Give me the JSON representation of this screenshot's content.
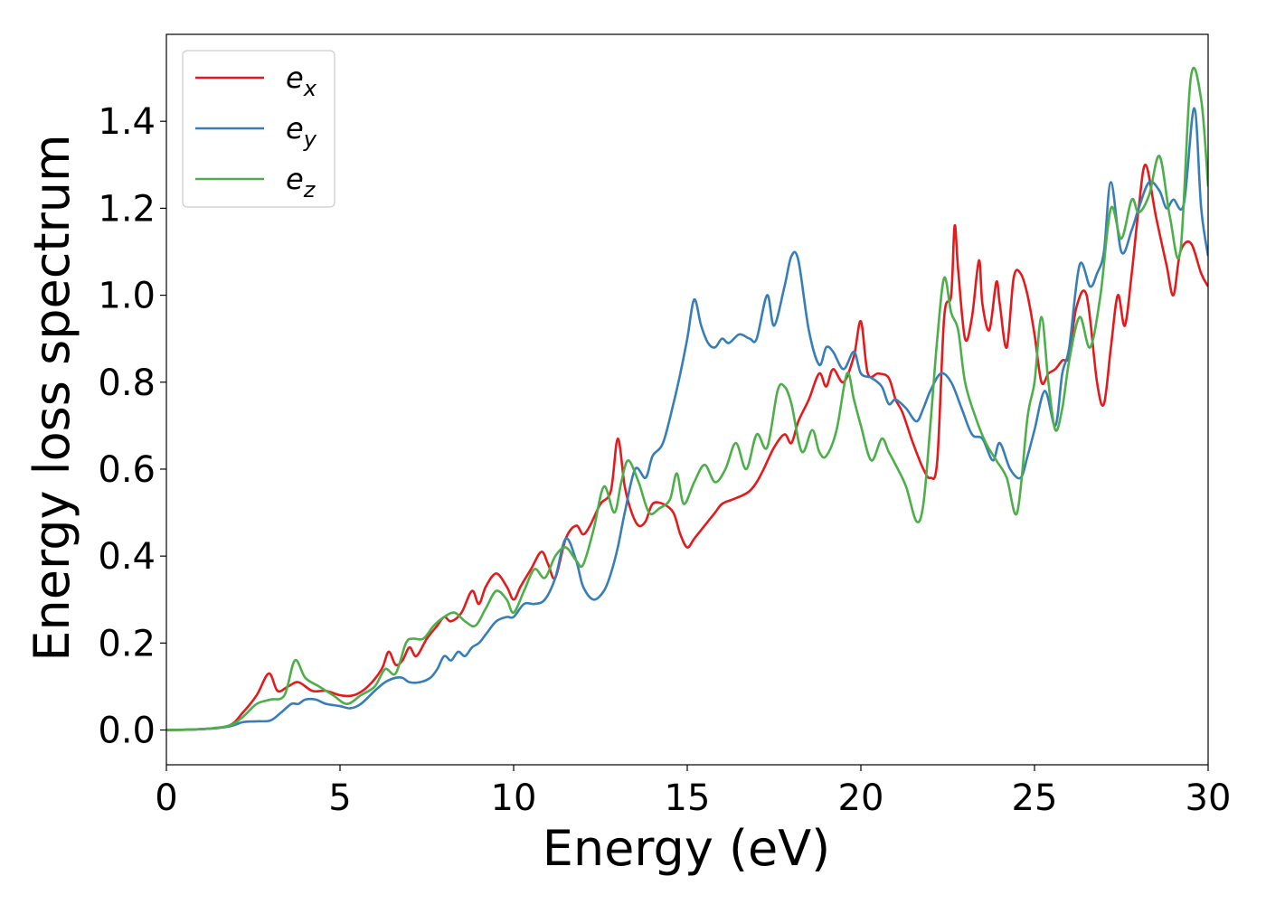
{
  "chart_data": {
    "type": "line",
    "title": "",
    "xlabel": "Energy (eV)",
    "ylabel": "Energy loss spectrum",
    "xlim": [
      0,
      30
    ],
    "ylim": [
      -0.08,
      1.6
    ],
    "xticks": [
      0,
      5,
      10,
      15,
      20,
      25,
      30
    ],
    "xtick_labels": [
      "0",
      "5",
      "10",
      "15",
      "20",
      "25",
      "30"
    ],
    "yticks": [
      0.0,
      0.2,
      0.4,
      0.6,
      0.8,
      1.0,
      1.2,
      1.4
    ],
    "ytick_labels": [
      "0.0",
      "0.2",
      "0.4",
      "0.6",
      "0.8",
      "1.0",
      "1.2",
      "1.4"
    ],
    "grid": false,
    "legend_position": "top-left",
    "series": [
      {
        "name": "e_x",
        "legend_base": "e",
        "legend_sub": "x",
        "color": "#e41a1c",
        "x": [
          0,
          1,
          1.8,
          2.2,
          2.6,
          2.95,
          3.2,
          3.5,
          3.8,
          4.2,
          4.6,
          5,
          5.4,
          5.8,
          6.2,
          6.4,
          6.6,
          6.8,
          7.0,
          7.2,
          7.5,
          7.8,
          8.0,
          8.2,
          8.5,
          8.8,
          9.0,
          9.2,
          9.5,
          9.8,
          10.0,
          10.2,
          10.5,
          10.8,
          11.0,
          11.2,
          11.5,
          11.8,
          12.0,
          12.2,
          12.5,
          12.8,
          13.0,
          13.2,
          13.4,
          13.6,
          13.8,
          14.0,
          14.3,
          14.6,
          14.8,
          15.0,
          15.2,
          15.5,
          15.8,
          16.0,
          16.3,
          16.6,
          16.8,
          17.0,
          17.2,
          17.5,
          17.8,
          18.0,
          18.2,
          18.5,
          18.8,
          19.0,
          19.2,
          19.5,
          19.8,
          20.0,
          20.2,
          20.5,
          20.8,
          21.0,
          21.2,
          21.5,
          21.8,
          22.0,
          22.2,
          22.4,
          22.6,
          22.7,
          22.8,
          23.0,
          23.2,
          23.4,
          23.5,
          23.7,
          23.9,
          24.0,
          24.2,
          24.4,
          24.6,
          24.8,
          25.0,
          25.2,
          25.4,
          25.6,
          25.8,
          26.0,
          26.2,
          26.5,
          26.8,
          27.0,
          27.2,
          27.4,
          27.6,
          27.8,
          28.0,
          28.2,
          28.5,
          28.8,
          29.0,
          29.2,
          29.5,
          29.8,
          30
        ],
        "y": [
          0,
          0.002,
          0.01,
          0.04,
          0.08,
          0.13,
          0.09,
          0.1,
          0.11,
          0.09,
          0.09,
          0.08,
          0.08,
          0.1,
          0.14,
          0.18,
          0.15,
          0.16,
          0.19,
          0.17,
          0.21,
          0.24,
          0.26,
          0.25,
          0.27,
          0.32,
          0.29,
          0.33,
          0.36,
          0.33,
          0.3,
          0.33,
          0.37,
          0.41,
          0.38,
          0.35,
          0.44,
          0.47,
          0.45,
          0.47,
          0.52,
          0.55,
          0.67,
          0.56,
          0.5,
          0.47,
          0.48,
          0.52,
          0.52,
          0.5,
          0.45,
          0.42,
          0.44,
          0.47,
          0.5,
          0.52,
          0.53,
          0.54,
          0.55,
          0.57,
          0.6,
          0.65,
          0.68,
          0.66,
          0.71,
          0.76,
          0.82,
          0.79,
          0.83,
          0.8,
          0.86,
          0.94,
          0.82,
          0.82,
          0.81,
          0.76,
          0.73,
          0.66,
          0.6,
          0.58,
          0.62,
          0.95,
          1.0,
          1.16,
          1.06,
          0.9,
          0.95,
          1.08,
          0.98,
          0.92,
          1.03,
          0.98,
          0.88,
          1.04,
          1.05,
          1.0,
          0.91,
          0.8,
          0.82,
          0.83,
          0.85,
          0.86,
          0.97,
          1.0,
          0.8,
          0.75,
          0.88,
          1.0,
          0.93,
          1.05,
          1.2,
          1.3,
          1.18,
          1.07,
          1.0,
          1.1,
          1.12,
          1.05,
          1.02
        ]
      },
      {
        "name": "e_y",
        "legend_base": "e",
        "legend_sub": "y",
        "color": "#377eb8",
        "x": [
          0,
          1,
          1.8,
          2.2,
          2.6,
          3.0,
          3.3,
          3.6,
          3.8,
          4.0,
          4.3,
          4.6,
          5.0,
          5.3,
          5.6,
          6.0,
          6.3,
          6.6,
          6.8,
          7.0,
          7.3,
          7.6,
          7.8,
          8.0,
          8.2,
          8.4,
          8.6,
          8.8,
          9.0,
          9.2,
          9.5,
          9.8,
          10.0,
          10.3,
          10.6,
          10.9,
          11.2,
          11.5,
          11.8,
          12.0,
          12.3,
          12.6,
          12.8,
          13.0,
          13.2,
          13.5,
          13.8,
          14.0,
          14.3,
          14.6,
          14.8,
          15.0,
          15.2,
          15.4,
          15.6,
          15.8,
          16.0,
          16.2,
          16.5,
          16.8,
          17.0,
          17.3,
          17.5,
          17.8,
          18.0,
          18.2,
          18.5,
          18.8,
          19.0,
          19.2,
          19.5,
          19.8,
          20.0,
          20.3,
          20.6,
          20.8,
          21.0,
          21.3,
          21.6,
          21.8,
          22.0,
          22.3,
          22.6,
          22.9,
          23.2,
          23.5,
          23.8,
          24.0,
          24.3,
          24.6,
          24.8,
          25.0,
          25.3,
          25.6,
          25.8,
          26.0,
          26.3,
          26.6,
          26.8,
          27.0,
          27.2,
          27.5,
          27.8,
          28.0,
          28.3,
          28.6,
          28.8,
          29.0,
          29.3,
          29.6,
          29.8,
          30
        ],
        "y": [
          0,
          0.002,
          0.008,
          0.018,
          0.02,
          0.022,
          0.04,
          0.06,
          0.06,
          0.07,
          0.07,
          0.06,
          0.055,
          0.05,
          0.06,
          0.09,
          0.11,
          0.12,
          0.12,
          0.11,
          0.11,
          0.12,
          0.14,
          0.17,
          0.16,
          0.18,
          0.17,
          0.19,
          0.2,
          0.22,
          0.25,
          0.26,
          0.26,
          0.29,
          0.29,
          0.3,
          0.35,
          0.44,
          0.39,
          0.33,
          0.3,
          0.32,
          0.36,
          0.42,
          0.5,
          0.6,
          0.58,
          0.63,
          0.66,
          0.75,
          0.82,
          0.9,
          0.99,
          0.93,
          0.89,
          0.88,
          0.9,
          0.89,
          0.91,
          0.9,
          0.9,
          1.0,
          0.93,
          1.02,
          1.09,
          1.08,
          0.92,
          0.84,
          0.88,
          0.87,
          0.83,
          0.87,
          0.82,
          0.81,
          0.79,
          0.75,
          0.76,
          0.74,
          0.71,
          0.74,
          0.78,
          0.82,
          0.8,
          0.74,
          0.68,
          0.67,
          0.62,
          0.66,
          0.6,
          0.58,
          0.63,
          0.69,
          0.78,
          0.7,
          0.82,
          0.88,
          1.07,
          1.02,
          1.05,
          1.1,
          1.26,
          1.1,
          1.15,
          1.2,
          1.26,
          1.24,
          1.2,
          1.22,
          1.21,
          1.43,
          1.2,
          1.09
        ]
      },
      {
        "name": "e_z",
        "legend_base": "e",
        "legend_sub": "z",
        "color": "#4daf4a",
        "x": [
          0,
          1,
          1.8,
          2.2,
          2.6,
          3.0,
          3.4,
          3.7,
          4.0,
          4.4,
          4.8,
          5.2,
          5.6,
          6.0,
          6.3,
          6.6,
          6.9,
          7.1,
          7.4,
          7.7,
          8.0,
          8.3,
          8.6,
          8.9,
          9.2,
          9.5,
          9.8,
          10.0,
          10.3,
          10.6,
          10.9,
          11.2,
          11.5,
          11.8,
          12.0,
          12.3,
          12.6,
          12.9,
          13.1,
          13.3,
          13.6,
          13.9,
          14.2,
          14.5,
          14.7,
          14.9,
          15.2,
          15.5,
          15.8,
          16.1,
          16.4,
          16.7,
          17.0,
          17.3,
          17.6,
          17.8,
          18.0,
          18.3,
          18.6,
          18.8,
          19.0,
          19.3,
          19.6,
          19.8,
          20.0,
          20.3,
          20.6,
          20.8,
          21.0,
          21.3,
          21.6,
          21.8,
          22.0,
          22.2,
          22.4,
          22.6,
          22.8,
          23.0,
          23.3,
          23.6,
          23.9,
          24.2,
          24.5,
          24.8,
          25.0,
          25.2,
          25.4,
          25.6,
          25.8,
          26.0,
          26.3,
          26.6,
          26.9,
          27.2,
          27.5,
          27.8,
          28.0,
          28.3,
          28.6,
          28.9,
          29.2,
          29.5,
          29.8,
          30
        ],
        "y": [
          0,
          0.002,
          0.01,
          0.03,
          0.06,
          0.07,
          0.08,
          0.16,
          0.12,
          0.1,
          0.08,
          0.06,
          0.08,
          0.1,
          0.14,
          0.13,
          0.2,
          0.21,
          0.21,
          0.24,
          0.26,
          0.27,
          0.25,
          0.24,
          0.28,
          0.32,
          0.3,
          0.27,
          0.32,
          0.37,
          0.35,
          0.4,
          0.42,
          0.39,
          0.38,
          0.46,
          0.56,
          0.5,
          0.57,
          0.62,
          0.57,
          0.5,
          0.51,
          0.53,
          0.59,
          0.52,
          0.57,
          0.61,
          0.57,
          0.6,
          0.66,
          0.6,
          0.68,
          0.65,
          0.78,
          0.79,
          0.75,
          0.64,
          0.69,
          0.64,
          0.63,
          0.69,
          0.82,
          0.76,
          0.7,
          0.62,
          0.67,
          0.64,
          0.61,
          0.56,
          0.48,
          0.52,
          0.7,
          0.9,
          1.04,
          0.96,
          0.92,
          0.8,
          0.72,
          0.66,
          0.62,
          0.58,
          0.5,
          0.72,
          0.8,
          0.95,
          0.8,
          0.69,
          0.74,
          0.85,
          0.95,
          0.88,
          1.0,
          1.2,
          1.13,
          1.22,
          1.19,
          1.23,
          1.32,
          1.18,
          1.1,
          1.5,
          1.45,
          1.25
        ]
      }
    ]
  }
}
